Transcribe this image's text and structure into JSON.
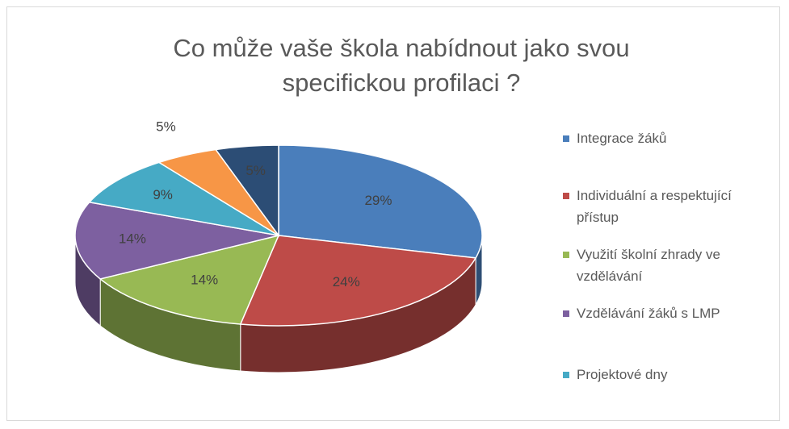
{
  "chart_data": {
    "type": "pie",
    "title": "Co může vaše škola nabídnout jako svou specifickou profilaci ?",
    "categories": [
      "Integrace žáků",
      "Individuální a respektující přístup",
      "Využití školní zhrady ve vzdělávání",
      "Vzdělávání žáků s LMP",
      "Projektové dny",
      null,
      null
    ],
    "values": [
      29,
      24,
      14,
      14,
      9,
      5,
      5
    ],
    "value_labels": [
      "29%",
      "24%",
      "14%",
      "14%",
      "9%",
      "5%",
      "5%"
    ],
    "colors": [
      "#4a7ebb",
      "#be4b48",
      "#98b954",
      "#7d60a0",
      "#46aac5",
      "#f79646",
      "#2c4d75"
    ]
  }
}
